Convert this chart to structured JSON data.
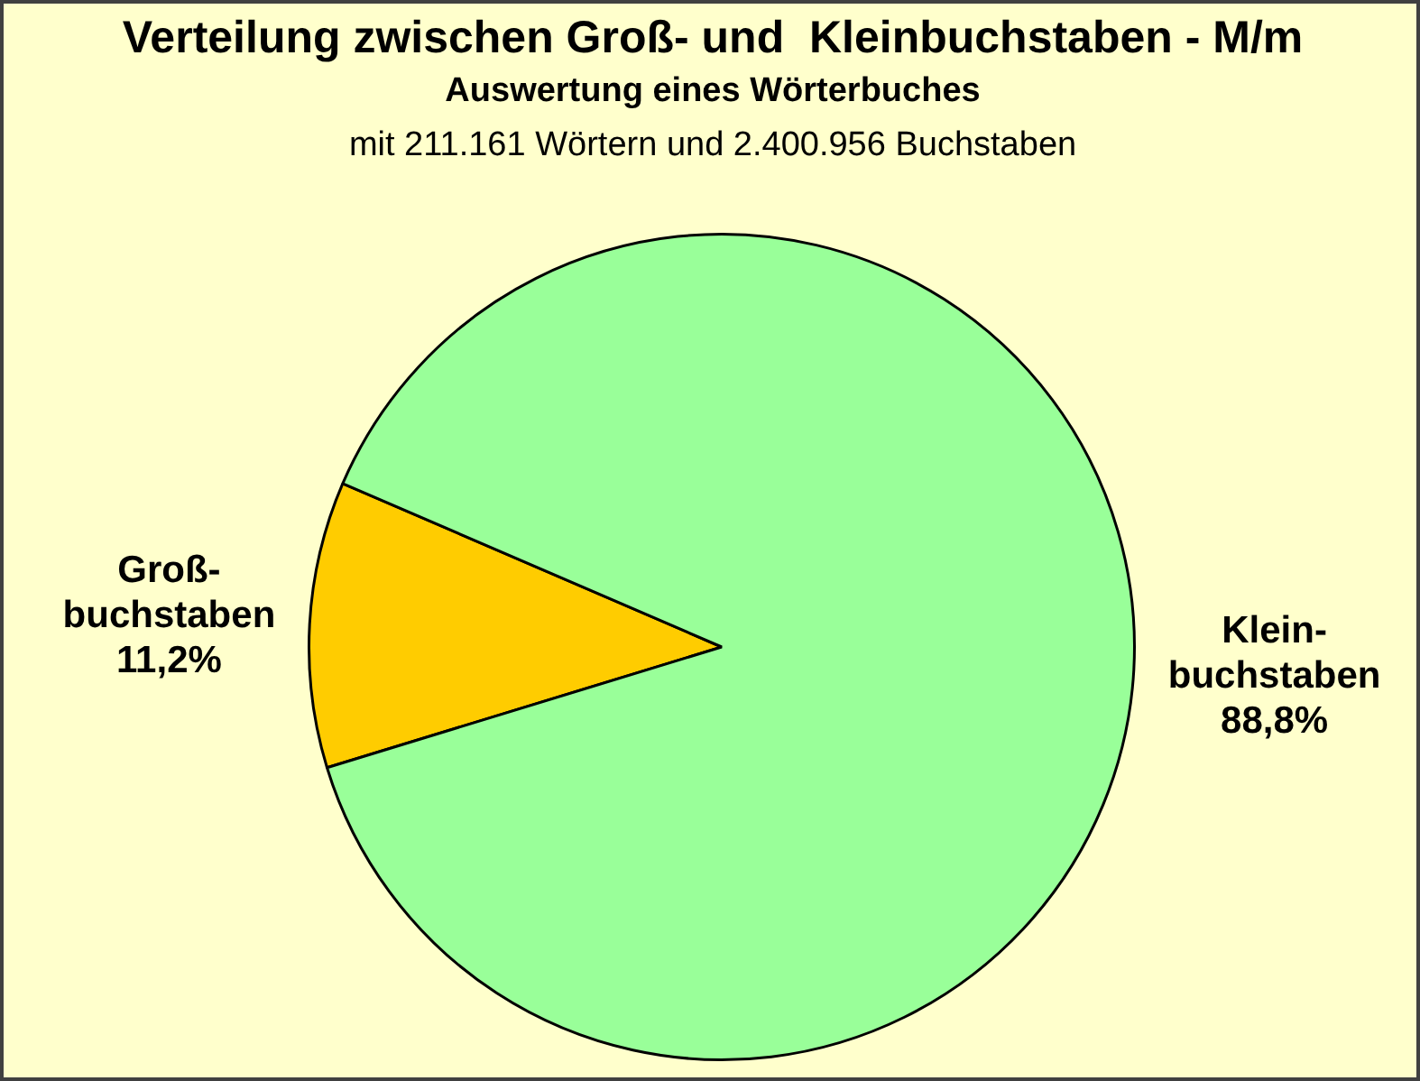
{
  "chart_data": {
    "type": "pie",
    "title": "Verteilung zwischen Groß- und  Kleinbuchstaben - M/m",
    "subtitle": "Auswertung eines Wörterbuches",
    "annotations": [
      "mit 211.161 Wörtern und 2.400.956 Buchstaben"
    ],
    "categories": [
      "Groß-\nbuchstaben",
      "Klein-\nbuchstaben"
    ],
    "values": [
      11.2,
      88.8
    ],
    "colors": [
      "#ffcc00",
      "#99ff99"
    ],
    "value_labels": [
      "11,2%",
      "88,8%"
    ],
    "legend": false
  }
}
